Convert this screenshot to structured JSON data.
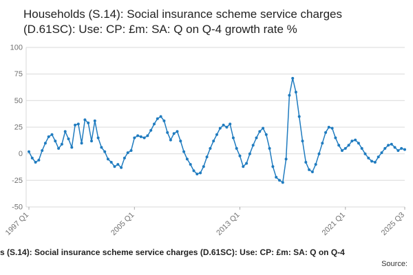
{
  "title": "Households (S.14): Social insurance scheme service charges (D.61SC): Use: CP: £m: SA: Q on Q-4 growth rate %",
  "footer": {
    "caption": "s (S.14): Social insurance scheme service charges (D.61SC): Use: CP: £m: SA: Q on Q-4",
    "source": "Source:"
  },
  "chart_data": {
    "type": "line",
    "title": "Households (S.14): Social insurance scheme service charges (D.61SC): Use: CP: £m: SA: Q on Q-4 growth rate %",
    "series_name": "Q on Q-4 growth rate %",
    "frequency": "quarterly",
    "x_start": "1997 Q1",
    "x_end": "2025 Q3",
    "x_tick_labels": [
      "1997 Q1",
      "2005 Q1",
      "2013 Q1",
      "2021 Q1",
      "2025 Q3"
    ],
    "x_tick_indices": [
      0,
      32,
      64,
      96,
      114
    ],
    "ylim": [
      -50,
      100
    ],
    "y_ticks": [
      -50,
      -25,
      0,
      25,
      50,
      75,
      100
    ],
    "unit": "%",
    "line_color": "#1f7bbf",
    "grid_color": "#d9d9d9",
    "axis_label_color": "#707070",
    "marker": "circle",
    "grid": "horizontal",
    "legend": "none",
    "values": [
      2,
      -4,
      -8,
      -6,
      3,
      10,
      16,
      18,
      12,
      5,
      9,
      21,
      14,
      6,
      27,
      28,
      10,
      32,
      29,
      12,
      31,
      15,
      6,
      2,
      -5,
      -8,
      -12,
      -10,
      -13,
      -4,
      1,
      3,
      15,
      17,
      16,
      15,
      17,
      22,
      28,
      33,
      35,
      31,
      20,
      13,
      19,
      21,
      12,
      2,
      -5,
      -10,
      -16,
      -19,
      -18,
      -12,
      -3,
      5,
      12,
      18,
      24,
      27,
      25,
      28,
      15,
      5,
      -2,
      -12,
      -9,
      0,
      8,
      15,
      21,
      24,
      18,
      5,
      -12,
      -22,
      -25,
      -27,
      -5,
      55,
      71,
      58,
      35,
      12,
      -8,
      -15,
      -17,
      -10,
      0,
      10,
      20,
      25,
      24,
      15,
      8,
      3,
      5,
      8,
      12,
      13,
      10,
      5,
      0,
      -4,
      -7,
      -8,
      -3,
      1,
      5,
      8,
      9,
      6,
      3,
      5,
      4
    ]
  }
}
